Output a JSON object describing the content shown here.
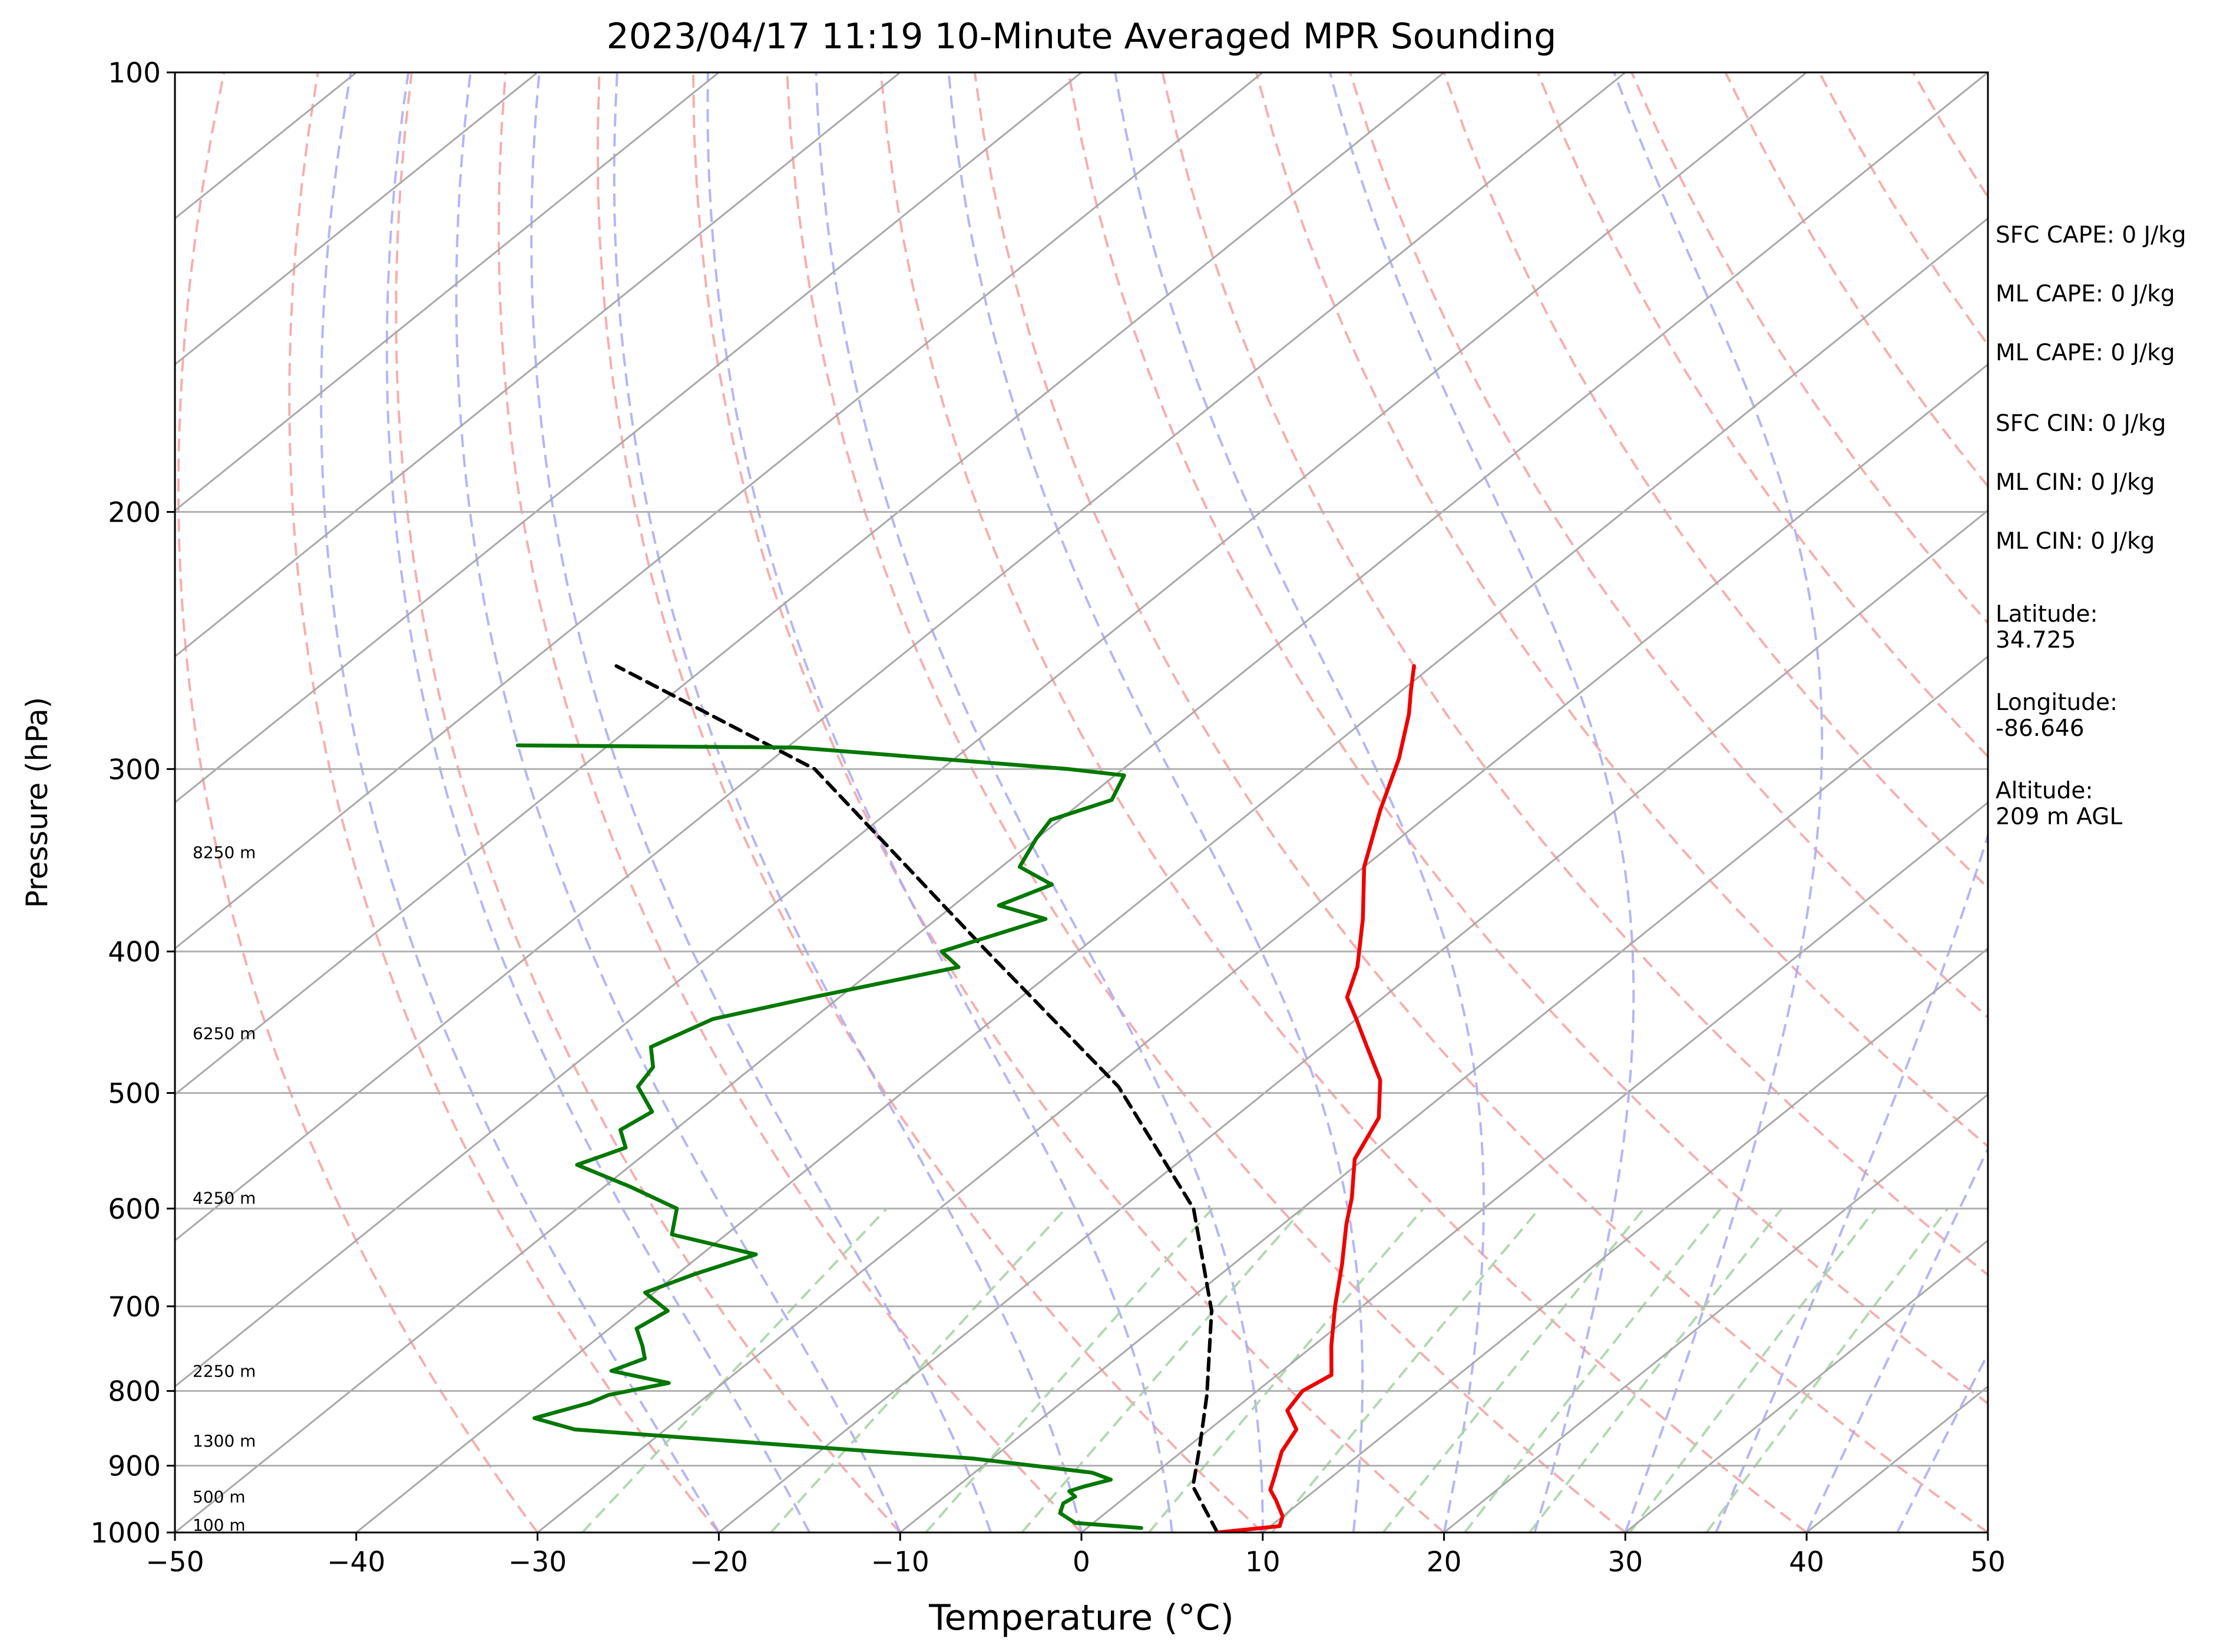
{
  "chart_data": {
    "type": "line",
    "subtype": "skew-t log-p sounding",
    "title": "2023/04/17 11:19 10-Minute Averaged MPR Sounding",
    "xlabel": "Temperature (°C)",
    "ylabel": "Pressure (hPa)",
    "xlim": [
      -50,
      50
    ],
    "ylim": [
      1000,
      100
    ],
    "y_scale": "log",
    "x_ticks": [
      -50,
      -40,
      -30,
      -20,
      -10,
      0,
      10,
      20,
      30,
      40,
      50
    ],
    "x_tick_labels": [
      "−50",
      "−40",
      "−30",
      "−20",
      "−10",
      "0",
      "10",
      "20",
      "30",
      "40",
      "50"
    ],
    "y_ticks": [
      1000,
      900,
      800,
      700,
      600,
      500,
      400,
      300,
      200,
      100
    ],
    "y_tick_labels": [
      "1000",
      "900",
      "800",
      "700",
      "600",
      "500",
      "400",
      "300",
      "200",
      "100"
    ],
    "grid": true,
    "colors": {
      "temperature": "#ee0000",
      "dewpoint": "#007700",
      "parcel": "#000000",
      "isotherm": "#a8a8a8",
      "dry_adiabat": "#f5a0a0",
      "moist_adiabat": "#a8a8f5",
      "mixing_ratio": "#a8d4a8",
      "pressure_grid": "#b0b0b0"
    },
    "height_labels": [
      {
        "text": "100 m",
        "pressure": 988
      },
      {
        "text": "500 m",
        "pressure": 945
      },
      {
        "text": "1300 m",
        "pressure": 865
      },
      {
        "text": "2250 m",
        "pressure": 775
      },
      {
        "text": "4250 m",
        "pressure": 590
      },
      {
        "text": "6250 m",
        "pressure": 455
      },
      {
        "text": "8250 m",
        "pressure": 342
      }
    ],
    "series": [
      {
        "key": "temperature",
        "points": [
          [
            7.5,
            1000
          ],
          [
            10.5,
            990
          ],
          [
            10.0,
            975
          ],
          [
            8.5,
            950
          ],
          [
            7.5,
            935
          ],
          [
            6.8,
            915
          ],
          [
            5.5,
            880
          ],
          [
            4.8,
            850
          ],
          [
            3.0,
            825
          ],
          [
            2.5,
            800
          ],
          [
            3.0,
            780
          ],
          [
            1.0,
            745
          ],
          [
            -1.5,
            700
          ],
          [
            -4.0,
            655
          ],
          [
            -6.5,
            615
          ],
          [
            -8.0,
            590
          ],
          [
            -10.5,
            555
          ],
          [
            -12.0,
            520
          ],
          [
            -14.5,
            490
          ],
          [
            -17.5,
            465
          ],
          [
            -20.0,
            445
          ],
          [
            -22.0,
            430
          ],
          [
            -23.5,
            410
          ],
          [
            -26.5,
            380
          ],
          [
            -30.0,
            350
          ],
          [
            -33.0,
            320
          ],
          [
            -35.5,
            295
          ],
          [
            -38.0,
            275
          ],
          [
            -39.5,
            265
          ],
          [
            -41.0,
            255
          ]
        ]
      },
      {
        "key": "dewpoint",
        "points": [
          [
            3.0,
            993
          ],
          [
            -1.0,
            985
          ],
          [
            -2.5,
            970
          ],
          [
            -3.0,
            955
          ],
          [
            -2.8,
            945
          ],
          [
            -3.5,
            937
          ],
          [
            -3.0,
            930
          ],
          [
            -2.0,
            920
          ],
          [
            -3.5,
            910
          ],
          [
            -11.0,
            890
          ],
          [
            -23.0,
            870
          ],
          [
            -35.0,
            850
          ],
          [
            -38.0,
            835
          ],
          [
            -36.0,
            815
          ],
          [
            -35.5,
            805
          ],
          [
            -33.0,
            790
          ],
          [
            -37.0,
            775
          ],
          [
            -36.0,
            760
          ],
          [
            -37.0,
            745
          ],
          [
            -38.5,
            725
          ],
          [
            -38.0,
            705
          ],
          [
            -40.5,
            685
          ],
          [
            -39.0,
            665
          ],
          [
            -37.0,
            645
          ],
          [
            -43.0,
            625
          ],
          [
            -44.5,
            600
          ],
          [
            -48.5,
            580
          ],
          [
            -53.0,
            560
          ],
          [
            -51.5,
            545
          ],
          [
            -53.0,
            530
          ],
          [
            -52.5,
            515
          ],
          [
            -55.0,
            495
          ],
          [
            -55.5,
            480
          ],
          [
            -57.0,
            465
          ],
          [
            -55.5,
            445
          ],
          [
            -51.5,
            430
          ],
          [
            -45.5,
            410
          ],
          [
            -47.5,
            400
          ],
          [
            -44.0,
            380
          ],
          [
            -47.5,
            372
          ],
          [
            -46.0,
            360
          ],
          [
            -49.0,
            350
          ],
          [
            -50.0,
            335
          ],
          [
            -50.5,
            325
          ],
          [
            -48.5,
            315
          ],
          [
            -49.5,
            303
          ],
          [
            -53.0,
            300
          ],
          [
            -69.5,
            290
          ],
          [
            -85.0,
            289
          ]
        ]
      },
      {
        "key": "parcel",
        "points": [
          [
            7.5,
            1000
          ],
          [
            3.0,
            930
          ],
          [
            0.5,
            870
          ],
          [
            -2.5,
            805
          ],
          [
            -8.0,
            705
          ],
          [
            -16.0,
            600
          ],
          [
            -28.5,
            495
          ],
          [
            -45.0,
            400
          ],
          [
            -67.0,
            300
          ],
          [
            -85.0,
            255
          ]
        ]
      }
    ],
    "annotations": [
      "SFC CAPE: 0 J/kg",
      "ML CAPE: 0 J/kg",
      "ML CAPE: 0 J/kg",
      "SFC CIN: 0 J/kg",
      "ML CIN: 0 J/kg",
      "ML CIN: 0 J/kg",
      "Latitude:\n34.725",
      "Longitude:\n-86.646",
      "Altitude:\n209 m AGL"
    ]
  }
}
